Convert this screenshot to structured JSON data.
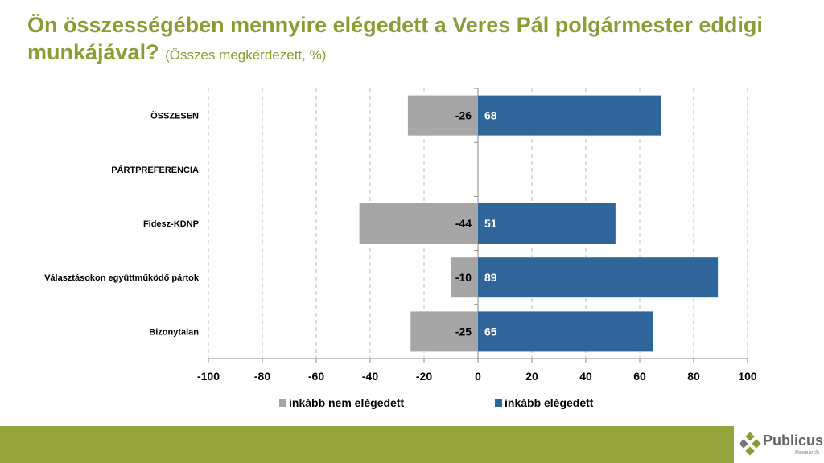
{
  "chart_data": {
    "type": "bar",
    "orientation": "horizontal-diverging",
    "title": "Ön összességében mennyire elégedett a Veres Pál polgármester eddigi munkájával?",
    "subtitle": "(Összes megkérdezett, %)",
    "categories": [
      "ÖSSZESEN",
      "PÁRTPREFERENCIA",
      "Fidesz-KDNP",
      "Választásokon együttműködő pártok",
      "Bizonytalan"
    ],
    "series": [
      {
        "name": "inkább nem elégedett",
        "color": "#a6a6a6",
        "values": [
          -26,
          null,
          -44,
          -10,
          -25
        ]
      },
      {
        "name": "inkább elégedett",
        "color": "#2f6598",
        "values": [
          68,
          null,
          51,
          89,
          65
        ]
      }
    ],
    "xlim": [
      -100,
      100
    ],
    "xticks": [
      "-100",
      "-80",
      "-60",
      "-40",
      "-20",
      "0",
      "20",
      "40",
      "60",
      "80",
      "100"
    ],
    "grid": "vertical dashed",
    "legend": "bottom"
  },
  "brand": {
    "name": "Publicus",
    "tagline": "Research"
  }
}
